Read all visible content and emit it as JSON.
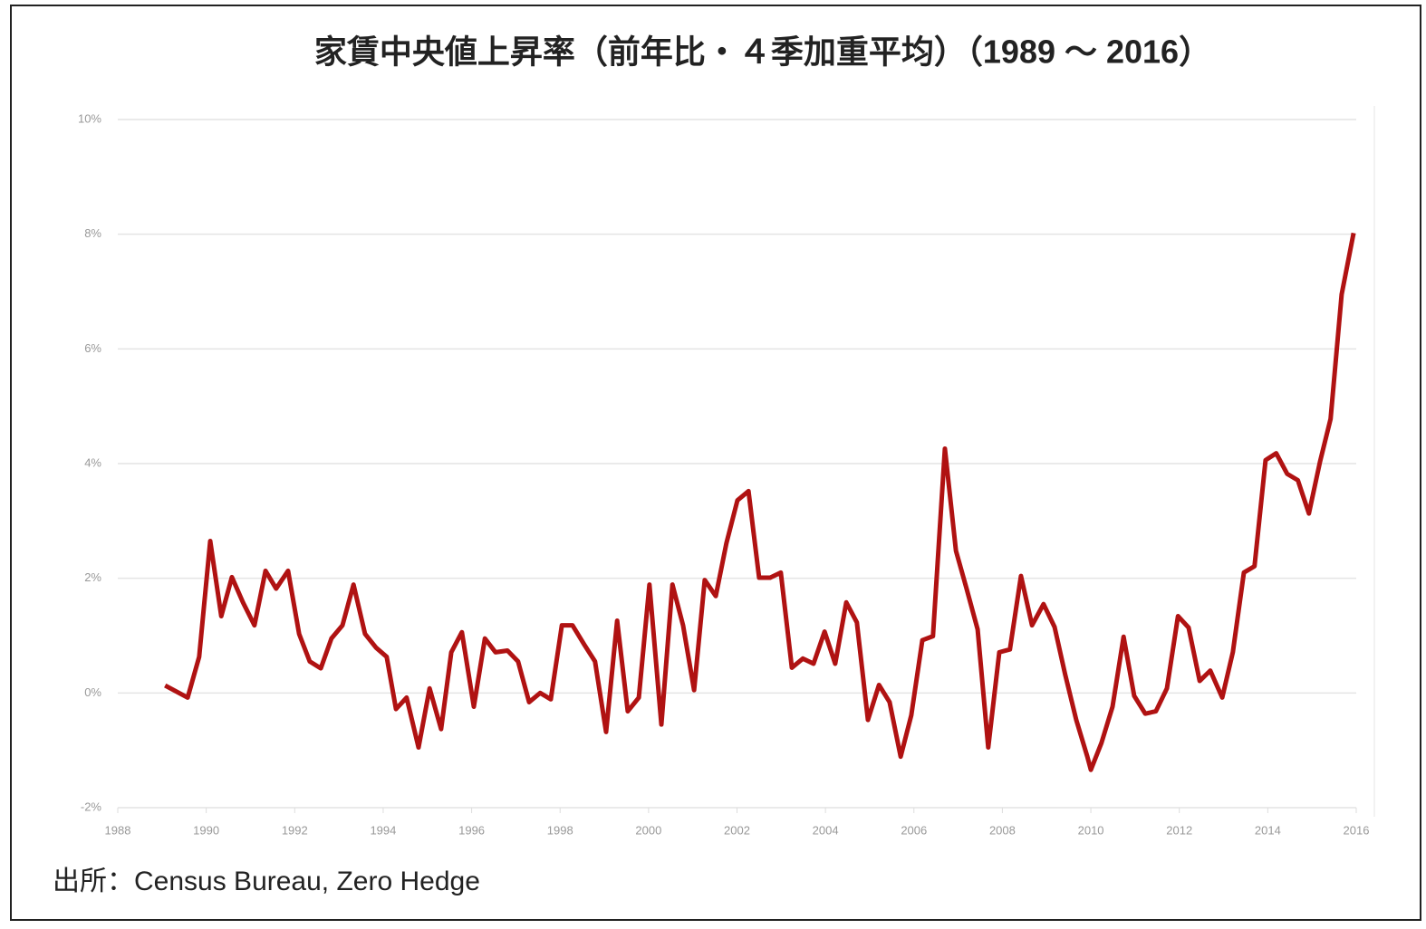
{
  "chart_data": {
    "type": "line",
    "title": "家賃中央値上昇率（前年比・４季加重平均）（1989 ～ 2016）",
    "source": "出所：Census Bureau, Zero Hedge",
    "x": [
      1989.07,
      1989.58,
      1989.84,
      1990.09,
      1990.34,
      1990.58,
      1990.83,
      1991.09,
      1991.34,
      1991.58,
      1991.85,
      1992.1,
      1992.34,
      1992.59,
      1992.83,
      1993.08,
      1993.33,
      1993.59,
      1993.84,
      1994.08,
      1994.29,
      1994.53,
      1994.8,
      1995.05,
      1995.31,
      1995.54,
      1995.78,
      1996.05,
      1996.3,
      1996.54,
      1996.81,
      1997.05,
      1997.3,
      1997.55,
      1997.79,
      1998.04,
      1998.28,
      1998.55,
      1998.79,
      1999.04,
      1999.29,
      1999.53,
      1999.78,
      2000.02,
      2000.29,
      2000.54,
      2000.78,
      2001.03,
      2001.27,
      2001.52,
      2001.76,
      2002.01,
      2002.26,
      2002.5,
      2002.75,
      2002.99,
      2003.24,
      2003.49,
      2003.73,
      2003.98,
      2004.22,
      2004.47,
      2004.71,
      2004.96,
      2005.21,
      2005.45,
      2005.7,
      2005.94,
      2006.19,
      2006.43,
      2006.7,
      2006.95,
      2007.19,
      2007.44,
      2007.68,
      2007.93,
      2008.17,
      2008.42,
      2008.67,
      2008.93,
      2009.18,
      2009.42,
      2009.67,
      2009.92,
      2010.0,
      2010.24,
      2010.49,
      2010.74,
      2010.98,
      2011.23,
      2011.47,
      2011.72,
      2011.97,
      2012.21,
      2012.46,
      2012.7,
      2012.97,
      2013.21,
      2013.46,
      2013.7,
      2013.95,
      2014.19,
      2014.44,
      2014.68,
      2014.93,
      2015.18,
      2015.42,
      2015.67,
      2015.94
    ],
    "series": [
      {
        "color": "#b01212",
        "values": [
          0.13,
          -0.08,
          0.63,
          2.65,
          1.34,
          2.02,
          1.58,
          1.18,
          2.13,
          1.82,
          2.13,
          1.03,
          0.55,
          0.43,
          0.95,
          1.18,
          1.89,
          1.03,
          0.79,
          0.63,
          -0.28,
          -0.08,
          -0.95,
          0.08,
          -0.63,
          0.71,
          1.06,
          -0.24,
          0.95,
          0.71,
          0.74,
          0.55,
          -0.16,
          0,
          -0.11,
          1.18,
          1.18,
          0.84,
          0.55,
          -0.68,
          1.26,
          -0.32,
          -0.08,
          1.89,
          -0.55,
          1.89,
          1.18,
          0.05,
          1.97,
          1.69,
          2.61,
          3.36,
          3.52,
          2.01,
          2.01,
          2.1,
          0.44,
          0.6,
          0.51,
          1.07,
          0.51,
          1.58,
          1.23,
          -0.47,
          0.14,
          -0.16,
          -1.11,
          -0.39,
          0.92,
          0.99,
          4.26,
          2.48,
          1.82,
          1.11,
          -0.95,
          0.71,
          0.76,
          2.04,
          1.18,
          1.55,
          1.15,
          0.32,
          -0.47,
          -1.11,
          -1.34,
          -0.87,
          -0.24,
          0.98,
          -0.05,
          -0.36,
          -0.32,
          0.08,
          1.34,
          1.14,
          0.21,
          0.39,
          -0.08,
          0.71,
          2.1,
          2.21,
          4.06,
          4.18,
          3.82,
          3.71,
          3.13,
          4.03,
          4.78,
          6.95,
          8.02
        ]
      }
    ],
    "xlim": [
      1988,
      2016
    ],
    "xticks": [
      1988,
      1990,
      1992,
      1994,
      1996,
      1998,
      2000,
      2002,
      2004,
      2006,
      2008,
      2010,
      2012,
      2014,
      2016
    ],
    "ylim": [
      -2,
      10
    ],
    "yticks": [
      {
        "value": -2,
        "label": "-2%"
      },
      {
        "value": 0,
        "label": "0%"
      },
      {
        "value": 2,
        "label": "2%"
      },
      {
        "value": 4,
        "label": "4%"
      },
      {
        "value": 6,
        "label": "6%"
      },
      {
        "value": 8,
        "label": "8%"
      },
      {
        "value": 10,
        "label": "10%"
      }
    ],
    "grid": true
  }
}
